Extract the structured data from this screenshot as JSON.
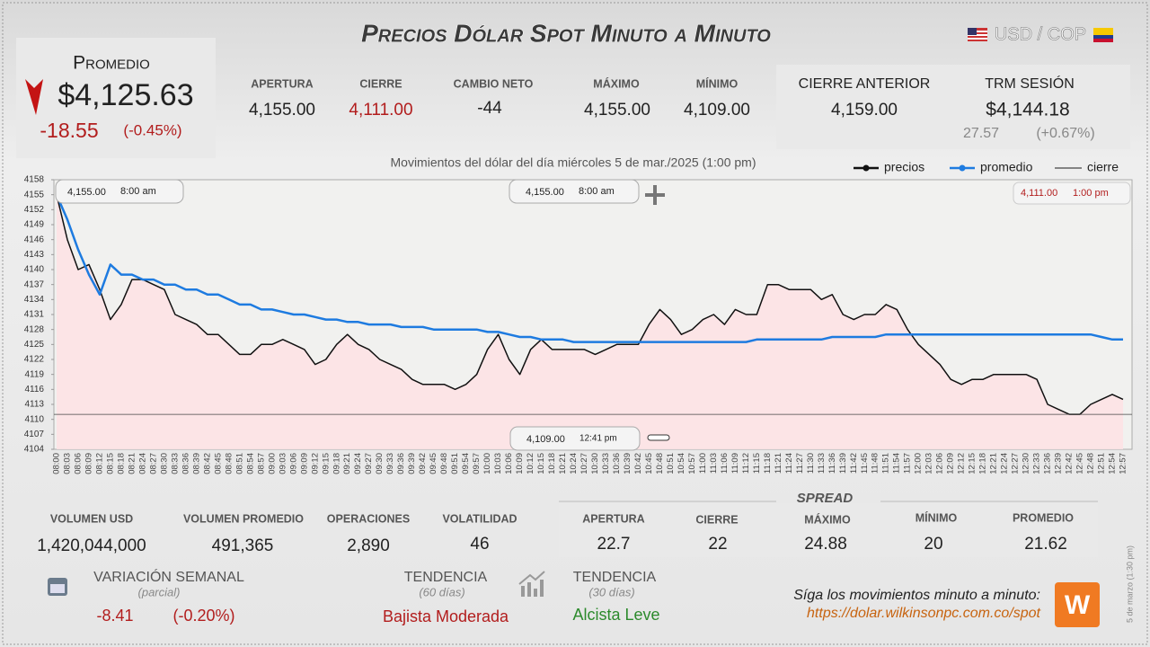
{
  "header": {
    "title": "Precios Dólar Spot Minuto a Minuto",
    "pair": "USD / COP"
  },
  "promedio": {
    "label": "Promedio",
    "value": "$4,125.63",
    "change": "-18.55",
    "change_pct": "(-0.45%)"
  },
  "stats": [
    {
      "label": "APERTURA",
      "value": "4,155.00"
    },
    {
      "label": "CIERRE",
      "value": "4,111.00"
    },
    {
      "label": "CAMBIO NETO",
      "value": "-44"
    },
    {
      "label": "MÁXIMO",
      "value": "4,155.00"
    },
    {
      "label": "MÍNIMO",
      "value": "4,109.00"
    }
  ],
  "previous_close": {
    "label": "CIERRE ANTERIOR",
    "value": "4,159.00"
  },
  "trm": {
    "label": "TRM SESIÓN",
    "value": "$4,144.18",
    "change": "27.57",
    "change_pct": "(+0.67%)"
  },
  "chart_data": {
    "type": "line",
    "title": "Movimientos del dólar del día miércoles 5 de mar./2025 (1:00 pm)",
    "categories": [
      "08:00",
      "08:03",
      "08:06",
      "08:09",
      "08:12",
      "08:15",
      "08:18",
      "08:21",
      "08:24",
      "08:27",
      "08:30",
      "08:33",
      "08:36",
      "08:39",
      "08:42",
      "08:45",
      "08:48",
      "08:51",
      "08:54",
      "08:57",
      "09:00",
      "09:03",
      "09:06",
      "09:09",
      "09:12",
      "09:15",
      "09:18",
      "09:21",
      "09:24",
      "09:27",
      "09:30",
      "09:33",
      "09:36",
      "09:39",
      "09:42",
      "09:45",
      "09:48",
      "09:51",
      "09:54",
      "09:57",
      "10:00",
      "10:03",
      "10:06",
      "10:09",
      "10:12",
      "10:15",
      "10:18",
      "10:21",
      "10:24",
      "10:27",
      "10:30",
      "10:33",
      "10:36",
      "10:39",
      "10:42",
      "10:45",
      "10:48",
      "10:51",
      "10:54",
      "10:57",
      "11:00",
      "11:03",
      "11:06",
      "11:09",
      "11:12",
      "11:15",
      "11:18",
      "11:21",
      "11:24",
      "11:27",
      "11:30",
      "11:33",
      "11:36",
      "11:39",
      "11:42",
      "11:45",
      "11:48",
      "11:51",
      "11:54",
      "11:57",
      "12:00",
      "12:03",
      "12:06",
      "12:09",
      "12:12",
      "12:15",
      "12:18",
      "12:21",
      "12:24",
      "12:27",
      "12:30",
      "12:33",
      "12:36",
      "12:39",
      "12:42",
      "12:45",
      "12:48",
      "12:51",
      "12:54",
      "12:57"
    ],
    "series": [
      {
        "name": "precios",
        "color": "#111111",
        "values": [
          4155,
          4146,
          4140,
          4141,
          4136,
          4130,
          4133,
          4138,
          4138,
          4137,
          4136,
          4131,
          4130,
          4129,
          4127,
          4127,
          4125,
          4123,
          4123,
          4125,
          4125,
          4126,
          4125,
          4124,
          4121,
          4122,
          4125,
          4127,
          4125,
          4124,
          4122,
          4121,
          4120,
          4118,
          4117,
          4117,
          4117,
          4116,
          4117,
          4119,
          4124,
          4127,
          4122,
          4119,
          4124,
          4126,
          4124,
          4124,
          4124,
          4124,
          4123,
          4124,
          4125,
          4125,
          4125,
          4129,
          4132,
          4130,
          4127,
          4128,
          4130,
          4131,
          4129,
          4132,
          4131,
          4131,
          4137,
          4137,
          4136,
          4136,
          4136,
          4134,
          4135,
          4131,
          4130,
          4131,
          4131,
          4133,
          4132,
          4128,
          4125,
          4123,
          4121,
          4118,
          4117,
          4118,
          4118,
          4119,
          4119,
          4119,
          4119,
          4118,
          4113,
          4112,
          4111,
          4111,
          4113,
          4114,
          4115,
          4114
        ]
      },
      {
        "name": "promedio",
        "color": "#1e7be0",
        "values": [
          4155,
          4150,
          4144,
          4139,
          4135,
          4141,
          4139,
          4139,
          4138,
          4138,
          4137,
          4137,
          4136,
          4136,
          4135,
          4135,
          4134,
          4133,
          4133,
          4132,
          4132,
          4131.5,
          4131,
          4131,
          4130.5,
          4130,
          4130,
          4129.5,
          4129.5,
          4129,
          4129,
          4129,
          4128.5,
          4128.5,
          4128.5,
          4128,
          4128,
          4128,
          4128,
          4128,
          4127.5,
          4127.5,
          4127,
          4126.5,
          4126.5,
          4126,
          4126,
          4126,
          4125.5,
          4125.5,
          4125.5,
          4125.5,
          4125.5,
          4125.5,
          4125.5,
          4125.5,
          4125.5,
          4125.5,
          4125.5,
          4125.5,
          4125.5,
          4125.5,
          4125.5,
          4125.5,
          4125.5,
          4126,
          4126,
          4126,
          4126,
          4126,
          4126,
          4126,
          4126.5,
          4126.5,
          4126.5,
          4126.5,
          4126.5,
          4127,
          4127,
          4127,
          4127,
          4127,
          4127,
          4127,
          4127,
          4127,
          4127,
          4127,
          4127,
          4127,
          4127,
          4127,
          4127,
          4127,
          4127,
          4127,
          4127,
          4126.5,
          4126,
          4126
        ]
      }
    ],
    "reference_lines": [
      {
        "name": "cierre",
        "value": 4111,
        "color": "#444444"
      }
    ],
    "ylim": [
      4104,
      4158
    ],
    "yticks": [
      4104,
      4107,
      4110,
      4113,
      4116,
      4119,
      4122,
      4125,
      4128,
      4131,
      4134,
      4137,
      4140,
      4143,
      4146,
      4149,
      4152,
      4155,
      4158
    ],
    "annotations": [
      {
        "price": "4,155.00",
        "time": "8:00 am"
      },
      {
        "price": "4,155.00",
        "time": "8:00 am"
      },
      {
        "price": "4,111.00",
        "time": "1:00 pm"
      },
      {
        "price": "4,109.00",
        "time": "12:41 pm"
      }
    ]
  },
  "volume": [
    {
      "label": "VOLUMEN USD",
      "value": "1,420,044,000"
    },
    {
      "label": "VOLUMEN PROMEDIO",
      "value": "491,365"
    },
    {
      "label": "OPERACIONES",
      "value": "2,890"
    },
    {
      "label": "VOLATILIDAD",
      "value": "46"
    }
  ],
  "spread": {
    "title": "SPREAD",
    "items": [
      {
        "label": "APERTURA",
        "value": "22.7"
      },
      {
        "label": "CIERRE",
        "value": "22"
      },
      {
        "label": "MÁXIMO",
        "value": "24.88"
      },
      {
        "label": "MÍNIMO",
        "value": "20"
      },
      {
        "label": "PROMEDIO",
        "value": "21.62"
      }
    ]
  },
  "weekly": {
    "label": "VARIACIÓN SEMANAL",
    "note": "(parcial)",
    "change": "-8.41",
    "change_pct": "(-0.20%)"
  },
  "trend60": {
    "label": "TENDENCIA",
    "note": "(60 días)",
    "value": "Bajista Moderada"
  },
  "trend30": {
    "label": "TENDENCIA",
    "note": "(30 días)",
    "value": "Alcista Leve"
  },
  "footer": {
    "text": "Síga los movimientos minuto a minuto:",
    "url": "https://dolar.wilkinsonpc.com.co/spot",
    "logo": "W",
    "date_note": "5 de marzo (1:30 pm)"
  }
}
